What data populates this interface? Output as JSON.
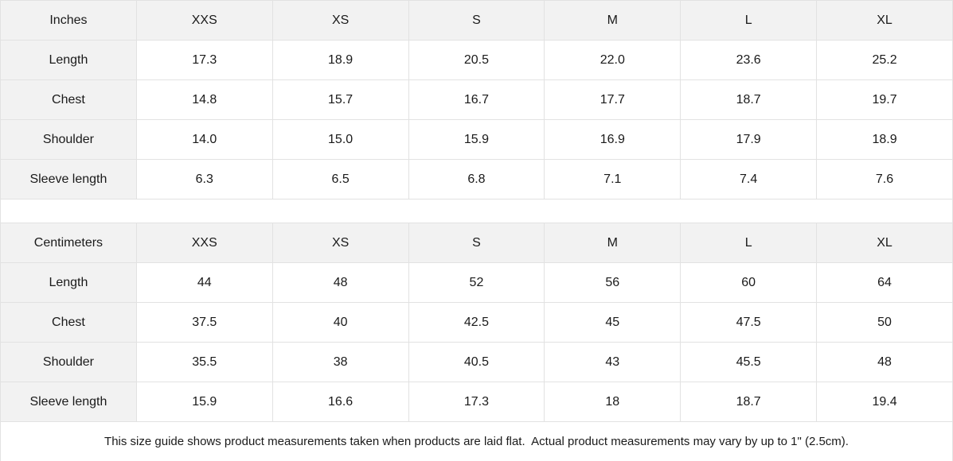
{
  "colors": {
    "header_bg": "#f2f2f2",
    "border": "#e2e2e2",
    "text": "#1a1a1a",
    "bg": "#ffffff"
  },
  "tables": [
    {
      "unit_label": "Inches",
      "sizes": [
        "XXS",
        "XS",
        "S",
        "M",
        "L",
        "XL"
      ],
      "rows": [
        {
          "label": "Length",
          "values": [
            "17.3",
            "18.9",
            "20.5",
            "22.0",
            "23.6",
            "25.2"
          ]
        },
        {
          "label": "Chest",
          "values": [
            "14.8",
            "15.7",
            "16.7",
            "17.7",
            "18.7",
            "19.7"
          ]
        },
        {
          "label": "Shoulder",
          "values": [
            "14.0",
            "15.0",
            "15.9",
            "16.9",
            "17.9",
            "18.9"
          ]
        },
        {
          "label": "Sleeve length",
          "values": [
            "6.3",
            "6.5",
            "6.8",
            "7.1",
            "7.4",
            "7.6"
          ]
        }
      ]
    },
    {
      "unit_label": "Centimeters",
      "sizes": [
        "XXS",
        "XS",
        "S",
        "M",
        "L",
        "XL"
      ],
      "rows": [
        {
          "label": "Length",
          "values": [
            "44",
            "48",
            "52",
            "56",
            "60",
            "64"
          ]
        },
        {
          "label": "Chest",
          "values": [
            "37.5",
            "40",
            "42.5",
            "45",
            "47.5",
            "50"
          ]
        },
        {
          "label": "Shoulder",
          "values": [
            "35.5",
            "38",
            "40.5",
            "43",
            "45.5",
            "48"
          ]
        },
        {
          "label": "Sleeve length",
          "values": [
            "15.9",
            "16.6",
            "17.3",
            "18",
            "18.7",
            "19.4"
          ]
        }
      ]
    }
  ],
  "footer_note": "This size guide shows product measurements taken when products are laid flat.  Actual product measurements may vary by up to 1\" (2.5cm)."
}
